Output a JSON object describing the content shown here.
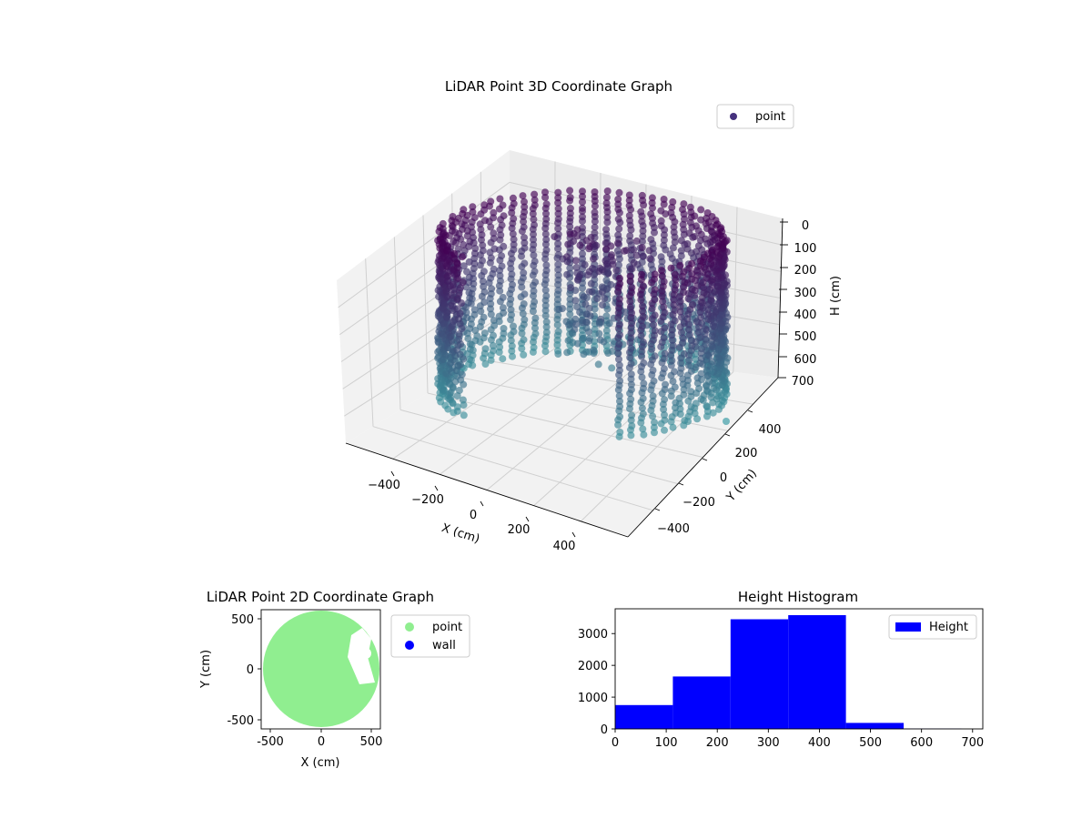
{
  "chart_data": [
    {
      "type": "scatter",
      "projection": "3d",
      "title": "LiDAR Point 3D Coordinate Graph",
      "xlabel": "X (cm)",
      "ylabel": "Y (cm)",
      "zlabel": "H (cm)",
      "x_ticks": [
        "−400",
        "−200",
        "0",
        "200",
        "400"
      ],
      "y_ticks": [
        "−400",
        "−200",
        "0",
        "200",
        "400"
      ],
      "z_ticks": [
        "0",
        "100",
        "200",
        "300",
        "400",
        "500",
        "600",
        "700"
      ],
      "xlim": [
        -560,
        560
      ],
      "ylim": [
        -560,
        560
      ],
      "zlim": [
        0,
        700
      ],
      "z_inverted": true,
      "series": [
        {
          "name": "point",
          "color_low": "#440154",
          "color_high": "#3b8f9a",
          "description_shape": "cylindrical wall of points, radius about 450, heights 0-560, with an interior cluster"
        }
      ],
      "cloud": {
        "radius": 450,
        "h_min": 0,
        "h_max": 560,
        "gap_angle_start": 10,
        "gap_angle_end": 75
      },
      "legend_position": "upper-right",
      "grid": true
    },
    {
      "type": "scatter",
      "title": "LiDAR Point 2D Coordinate Graph",
      "xlabel": "X (cm)",
      "ylabel": "Y (cm)",
      "x_ticks": [
        -500,
        0,
        500
      ],
      "y_ticks": [
        -500,
        0,
        500
      ],
      "xlim": [
        -590,
        590
      ],
      "ylim": [
        -590,
        590
      ],
      "series": [
        {
          "name": "point",
          "color": "#90ee90",
          "radius": 560,
          "cut_center": [
            430,
            0
          ],
          "cut_radius": 240
        },
        {
          "name": "wall",
          "color": "#0000ff"
        }
      ],
      "legend_position": "outside-right"
    },
    {
      "type": "bar",
      "subtype": "histogram",
      "title": "Height Histogram",
      "series": [
        {
          "name": "Height",
          "color": "#0000ff"
        }
      ],
      "bins": [
        {
          "start": 0,
          "end": 113,
          "count": 750
        },
        {
          "start": 113,
          "end": 226,
          "count": 1650
        },
        {
          "start": 226,
          "end": 339,
          "count": 3450
        },
        {
          "start": 339,
          "end": 452,
          "count": 3580
        },
        {
          "start": 452,
          "end": 565,
          "count": 190
        },
        {
          "start": 565,
          "end": 678,
          "count": 10
        }
      ],
      "x_ticks": [
        0,
        100,
        200,
        300,
        400,
        500,
        600,
        700
      ],
      "y_ticks": [
        0,
        1000,
        2000,
        3000
      ],
      "xlim": [
        0,
        720
      ],
      "ylim": [
        0,
        3780
      ],
      "legend_position": "upper-right"
    }
  ]
}
